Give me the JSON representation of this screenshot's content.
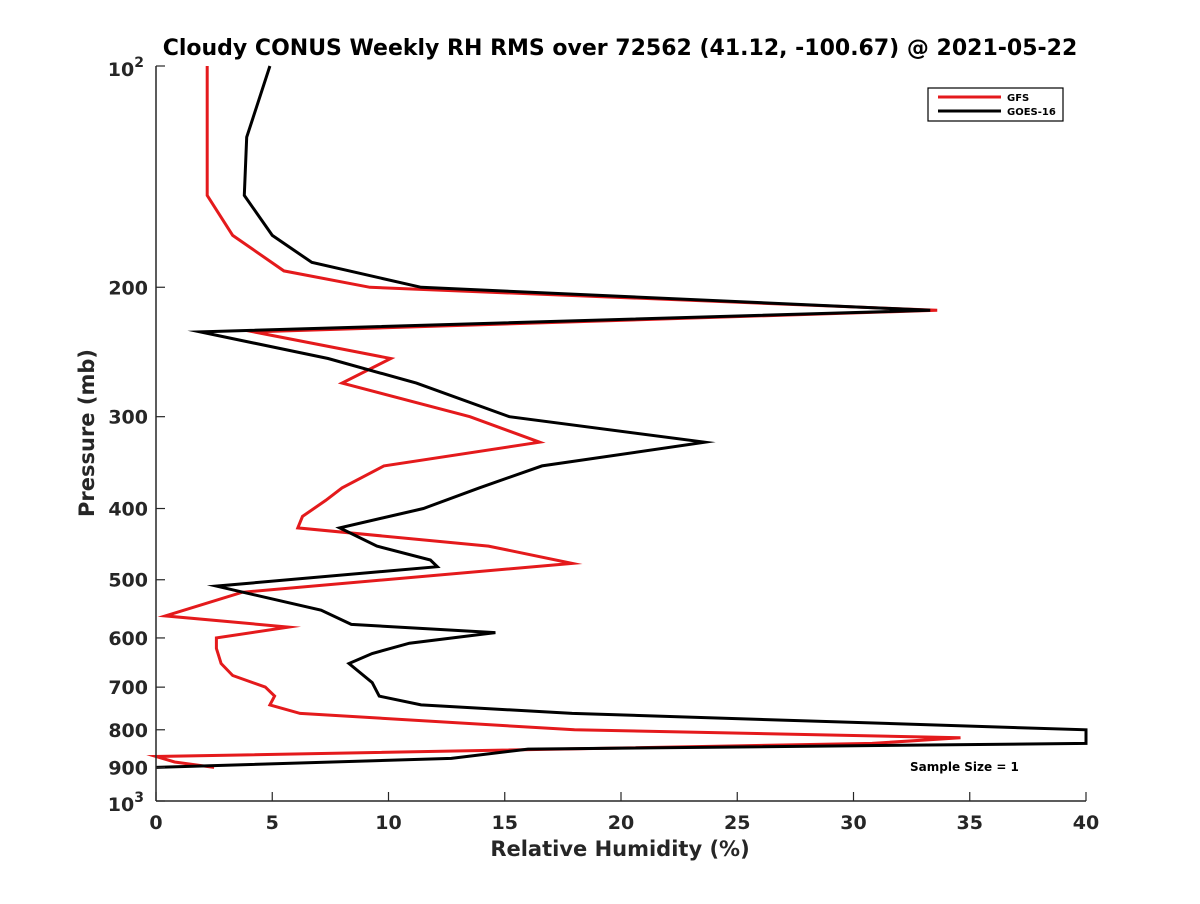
{
  "chart_data": {
    "type": "line",
    "title": "Cloudy CONUS Weekly RH RMS over 72562 (41.12, -100.67) @ 2021-05-22",
    "xlabel": "Relative Humidity (%)",
    "ylabel": "Pressure (mb)",
    "xlim": [
      0,
      40
    ],
    "ylim": [
      100,
      1000
    ],
    "yscale": "log",
    "y_reversed": true,
    "grid": false,
    "legend_position": "top-right",
    "x_ticks": [
      "0",
      "5",
      "10",
      "15",
      "20",
      "25",
      "30",
      "35",
      "40"
    ],
    "y_ticks": [
      {
        "value": 100,
        "base": "10",
        "exp": "2"
      },
      {
        "value": 200,
        "label": "200"
      },
      {
        "value": 300,
        "label": "300"
      },
      {
        "value": 400,
        "label": "400"
      },
      {
        "value": 500,
        "label": "500"
      },
      {
        "value": 600,
        "label": "600"
      },
      {
        "value": 700,
        "label": "700"
      },
      {
        "value": 800,
        "label": "800"
      },
      {
        "value": 900,
        "label": "900"
      },
      {
        "value": 1000,
        "base": "10",
        "exp": "3"
      }
    ],
    "series": [
      {
        "name": "GFS",
        "color": "#e41a1c",
        "points": [
          [
            2.2,
            100
          ],
          [
            2.2,
            125
          ],
          [
            2.2,
            150
          ],
          [
            3.3,
            170
          ],
          [
            5.5,
            190
          ],
          [
            9.2,
            200
          ],
          [
            33.6,
            215
          ],
          [
            4.2,
            230
          ],
          [
            10.1,
            250
          ],
          [
            8.0,
            270
          ],
          [
            13.5,
            300
          ],
          [
            16.5,
            325
          ],
          [
            9.8,
            350
          ],
          [
            8.0,
            375
          ],
          [
            7.3,
            390
          ],
          [
            6.3,
            410
          ],
          [
            6.1,
            425
          ],
          [
            14.3,
            450
          ],
          [
            17.9,
            475
          ],
          [
            3.7,
            520
          ],
          [
            0.4,
            560
          ],
          [
            5.7,
            580
          ],
          [
            2.6,
            600
          ],
          [
            2.6,
            620
          ],
          [
            2.8,
            650
          ],
          [
            3.3,
            675
          ],
          [
            4.7,
            700
          ],
          [
            5.1,
            720
          ],
          [
            4.9,
            740
          ],
          [
            6.2,
            760
          ],
          [
            18.0,
            800
          ],
          [
            34.6,
            820
          ],
          [
            30.8,
            835
          ],
          [
            0.0,
            870
          ],
          [
            0.8,
            885
          ],
          [
            2.5,
            900
          ]
        ]
      },
      {
        "name": "GOES-16",
        "color": "#000000",
        "points": [
          [
            4.9,
            100
          ],
          [
            3.9,
            125
          ],
          [
            3.8,
            150
          ],
          [
            5.0,
            170
          ],
          [
            6.7,
            185
          ],
          [
            11.4,
            200
          ],
          [
            33.3,
            215
          ],
          [
            1.9,
            230
          ],
          [
            7.4,
            250
          ],
          [
            11.2,
            270
          ],
          [
            15.2,
            300
          ],
          [
            23.6,
            325
          ],
          [
            16.6,
            350
          ],
          [
            13.9,
            375
          ],
          [
            11.5,
            400
          ],
          [
            7.9,
            425
          ],
          [
            9.5,
            450
          ],
          [
            11.8,
            470
          ],
          [
            12.1,
            480
          ],
          [
            2.6,
            510
          ],
          [
            7.1,
            550
          ],
          [
            8.4,
            575
          ],
          [
            14.6,
            590
          ],
          [
            10.9,
            610
          ],
          [
            9.3,
            630
          ],
          [
            8.3,
            650
          ],
          [
            9.3,
            690
          ],
          [
            9.6,
            720
          ],
          [
            11.4,
            740
          ],
          [
            17.9,
            760
          ],
          [
            40.0,
            800
          ],
          [
            40.0,
            835
          ],
          [
            16.0,
            850
          ],
          [
            12.7,
            875
          ],
          [
            0.0,
            900
          ]
        ]
      }
    ],
    "annotations": [
      "Sample Size = 1"
    ]
  }
}
